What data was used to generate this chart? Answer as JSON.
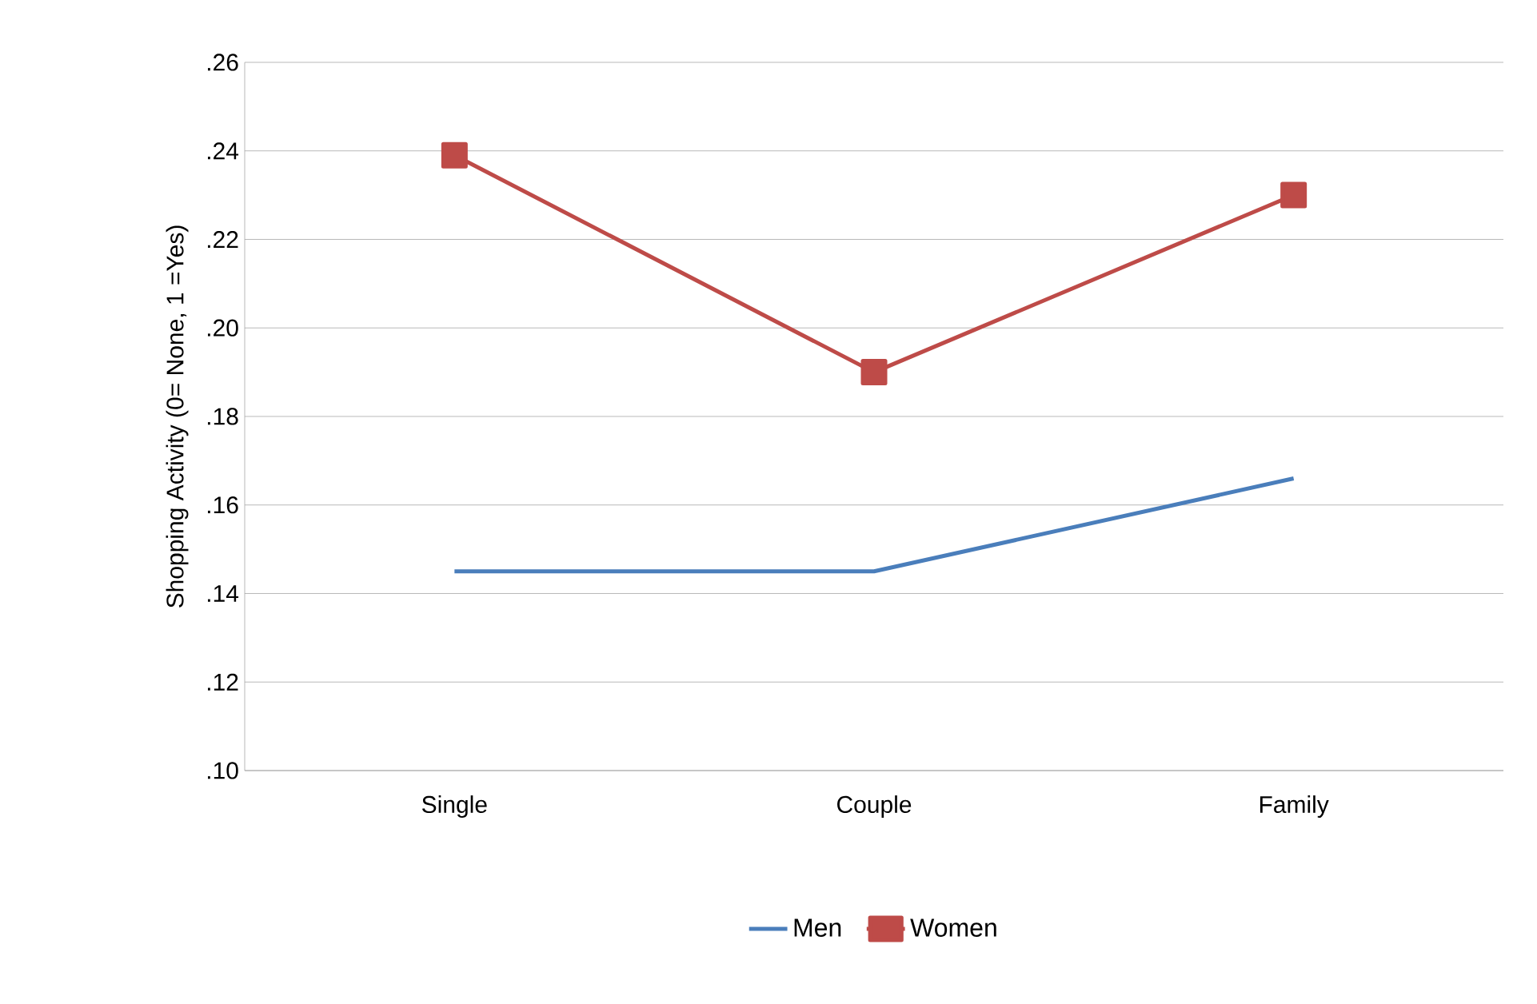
{
  "chart_data": {
    "type": "line",
    "ylabel": "Shopping Activity (0= None, 1 =Yes)",
    "categories": [
      "Single",
      "Couple",
      "Family"
    ],
    "series": [
      {
        "name": "Men",
        "color": "#4a7ebb",
        "values": [
          0.145,
          0.145,
          0.166
        ],
        "marker": "none"
      },
      {
        "name": "Women",
        "color": "#be4b48",
        "values": [
          0.239,
          0.19,
          0.23
        ],
        "marker": "square"
      }
    ],
    "ylim": [
      0.1,
      0.26
    ],
    "yticks": [
      {
        "value": 0.1,
        "label": ".10"
      },
      {
        "value": 0.12,
        "label": ".12"
      },
      {
        "value": 0.14,
        "label": ".14"
      },
      {
        "value": 0.16,
        "label": ".16"
      },
      {
        "value": 0.18,
        "label": ".18"
      },
      {
        "value": 0.2,
        "label": ".20"
      },
      {
        "value": 0.22,
        "label": ".22"
      },
      {
        "value": 0.24,
        "label": ".24"
      },
      {
        "value": 0.26,
        "label": ".26"
      }
    ],
    "grid": "y",
    "legend": "bottom",
    "line_style": "solid"
  }
}
